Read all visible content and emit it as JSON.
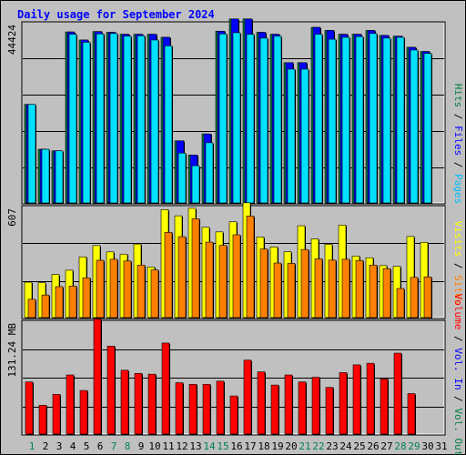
{
  "chart_data": [
    {
      "type": "bar",
      "title": "Daily usage for September 2024",
      "categories": [
        "1",
        "2",
        "3",
        "4",
        "5",
        "6",
        "7",
        "8",
        "9",
        "10",
        "11",
        "12",
        "13",
        "14",
        "15",
        "16",
        "17",
        "18",
        "19",
        "20",
        "21",
        "22",
        "23",
        "24",
        "25",
        "26",
        "27",
        "28",
        "29",
        "30",
        "31"
      ],
      "weekend_days": [
        "1",
        "7",
        "8",
        "14",
        "15",
        "21",
        "22",
        "28",
        "29"
      ],
      "ylabel": "Hits / Files / Pages",
      "ylabel_parts": [
        {
          "text": "Hits",
          "color": "#008040"
        },
        {
          "text": " / ",
          "color": "#000000"
        },
        {
          "text": "Files",
          "color": "#0000ff"
        },
        {
          "text": " / ",
          "color": "#000000"
        },
        {
          "text": "Pages",
          "color": "#00c0ff"
        }
      ],
      "ymax_label": "44424",
      "ylim": [
        0,
        47000
      ],
      "series": [
        {
          "name": "Hits",
          "color": "#008040",
          "values": [
            25700,
            14000,
            13600,
            44600,
            42500,
            44700,
            44500,
            44000,
            44000,
            44000,
            43200,
            16200,
            12500,
            18000,
            44800,
            48000,
            48000,
            44500,
            44000,
            36600,
            36600,
            45800,
            45000,
            44000,
            44000,
            45000,
            43700,
            43500,
            40600,
            39500,
            null
          ]
        },
        {
          "name": "Files",
          "color": "#0000ff",
          "values": [
            25700,
            14000,
            13600,
            44600,
            42500,
            44700,
            44500,
            44000,
            44000,
            44000,
            43200,
            16200,
            12500,
            18000,
            44800,
            48000,
            48000,
            44500,
            44000,
            36600,
            36600,
            45800,
            45000,
            44000,
            44000,
            45000,
            43700,
            43500,
            40600,
            39500,
            null
          ]
        },
        {
          "name": "Pages",
          "color": "#00e0ff",
          "values": [
            25700,
            14000,
            13600,
            44000,
            41900,
            44100,
            44200,
            43500,
            43600,
            42500,
            41000,
            13000,
            9700,
            15700,
            44100,
            44400,
            44000,
            43000,
            43500,
            34900,
            34900,
            44000,
            42700,
            43200,
            43400,
            44200,
            43000,
            43200,
            39900,
            39000,
            null
          ]
        }
      ]
    },
    {
      "type": "bar",
      "categories": [
        "1",
        "2",
        "3",
        "4",
        "5",
        "6",
        "7",
        "8",
        "9",
        "10",
        "11",
        "12",
        "13",
        "14",
        "15",
        "16",
        "17",
        "18",
        "19",
        "20",
        "21",
        "22",
        "23",
        "24",
        "25",
        "26",
        "27",
        "28",
        "29",
        "30",
        "31"
      ],
      "ylabel": "Visits / Sites",
      "ylabel_parts": [
        {
          "text": "Visits",
          "color": "#ffff00"
        },
        {
          "text": " / ",
          "color": "#000000"
        },
        {
          "text": "Sites",
          "color": "#ff8000"
        }
      ],
      "ymax_label": "607",
      "ylim": [
        0,
        649
      ],
      "series": [
        {
          "name": "Visits",
          "color": "#ffff00",
          "values": [
            207,
            204,
            252,
            277,
            355,
            421,
            384,
            371,
            430,
            296,
            631,
            595,
            639,
            528,
            501,
            560,
            671,
            471,
            413,
            385,
            537,
            460,
            428,
            541,
            360,
            350,
            304,
            300,
            474,
            440,
            null
          ]
        },
        {
          "name": "Sites",
          "color": "#ff8000",
          "values": [
            107,
            132,
            181,
            184,
            232,
            335,
            341,
            331,
            307,
            279,
            498,
            473,
            578,
            441,
            422,
            484,
            594,
            401,
            319,
            317,
            398,
            343,
            336,
            341,
            334,
            307,
            286,
            170,
            235,
            238,
            null
          ]
        }
      ]
    },
    {
      "type": "bar",
      "categories": [
        "1",
        "2",
        "3",
        "4",
        "5",
        "6",
        "7",
        "8",
        "9",
        "10",
        "11",
        "12",
        "13",
        "14",
        "15",
        "16",
        "17",
        "18",
        "19",
        "20",
        "21",
        "22",
        "23",
        "24",
        "25",
        "26",
        "27",
        "28",
        "29",
        "30",
        "31"
      ],
      "ylabel": "Volume / Vol. In / Vol. Out",
      "ylabel_parts": [
        {
          "text": "Volume",
          "color": "#ff0000"
        },
        {
          "text": " / ",
          "color": "#000000"
        },
        {
          "text": "Vol. In",
          "color": "#0000ff"
        },
        {
          "text": " / ",
          "color": "#000000"
        },
        {
          "text": "Vol. Out",
          "color": "#008040"
        }
      ],
      "ymax_label": "131.24 MB",
      "ylim": [
        0,
        145
      ],
      "series": [
        {
          "name": "Volume",
          "color": "#ff0000",
          "values": [
            67,
            37,
            51,
            76,
            56,
            148,
            113,
            82,
            78,
            77,
            117,
            66,
            64,
            64,
            68,
            49,
            95,
            80,
            63,
            76,
            67,
            73,
            60,
            79,
            89,
            91,
            71,
            104,
            52,
            null,
            null
          ]
        }
      ]
    }
  ]
}
